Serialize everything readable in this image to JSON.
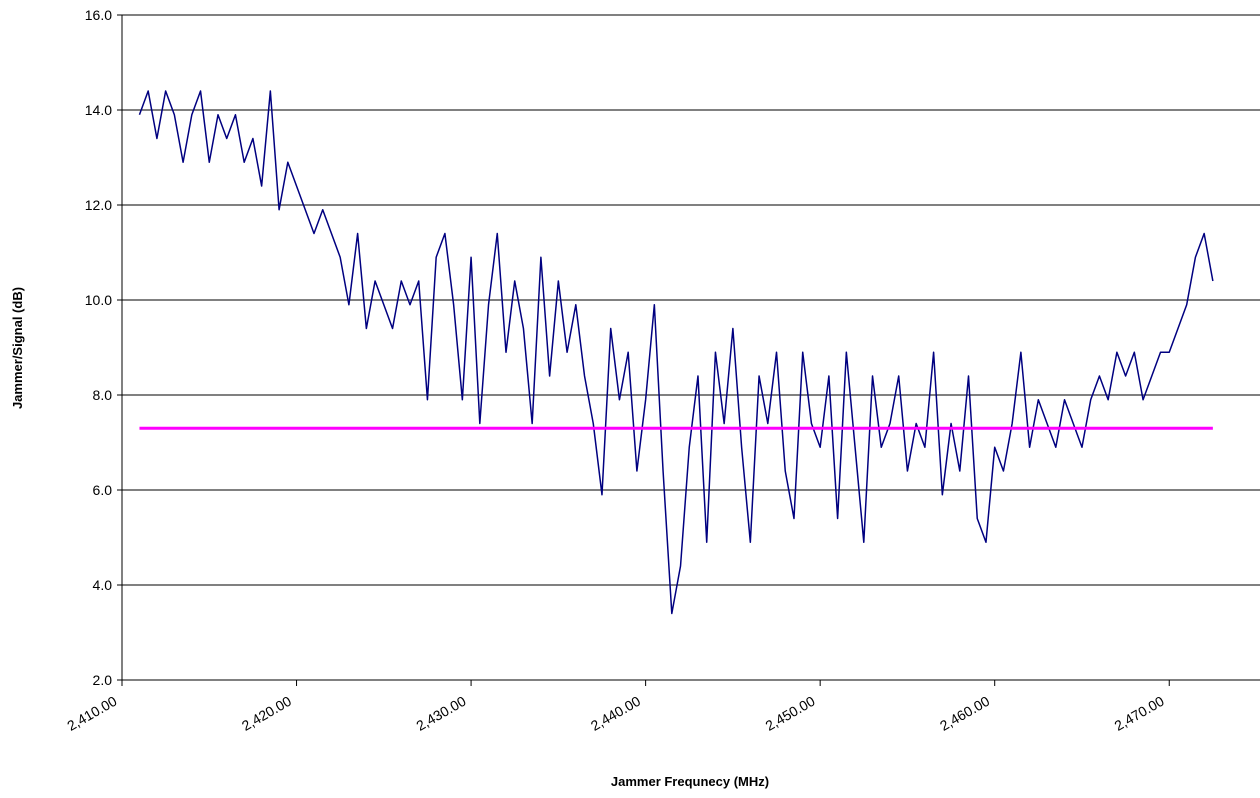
{
  "chart_data": {
    "type": "line",
    "xlabel": "Jammer Frequnecy (MHz)",
    "ylabel": "Jammer/Signal (dB)",
    "xlim": [
      2410,
      2475.2
    ],
    "ylim": [
      2,
      16
    ],
    "xticks": [
      {
        "value": 2410,
        "label": "2,410.00"
      },
      {
        "value": 2420,
        "label": "2,420.00"
      },
      {
        "value": 2430,
        "label": "2,430.00"
      },
      {
        "value": 2440,
        "label": "2,440.00"
      },
      {
        "value": 2450,
        "label": "2,450.00"
      },
      {
        "value": 2460,
        "label": "2,460.00"
      },
      {
        "value": 2470,
        "label": "2,470.00"
      }
    ],
    "yticks": [
      {
        "value": 2,
        "label": "2.0"
      },
      {
        "value": 4,
        "label": "4.0"
      },
      {
        "value": 6,
        "label": "6.0"
      },
      {
        "value": 8,
        "label": "8.0"
      },
      {
        "value": 10,
        "label": "10.0"
      },
      {
        "value": 12,
        "label": "12.0"
      },
      {
        "value": 14,
        "label": "14.0"
      },
      {
        "value": 16,
        "label": "16.0"
      }
    ],
    "grid": true,
    "series": [
      {
        "color": "#000080",
        "x": [
          2411,
          2411.5,
          2412,
          2412.5,
          2413,
          2413.5,
          2414,
          2414.5,
          2415,
          2415.5,
          2416,
          2416.5,
          2417,
          2417.5,
          2418,
          2418.5,
          2419,
          2419.5,
          2420,
          2420.5,
          2421,
          2421.5,
          2422,
          2422.5,
          2423,
          2423.5,
          2424,
          2424.5,
          2425,
          2425.5,
          2426,
          2426.5,
          2427,
          2427.5,
          2428,
          2428.5,
          2429,
          2429.5,
          2430,
          2430.5,
          2431,
          2431.5,
          2432,
          2432.5,
          2433,
          2433.5,
          2434,
          2434.5,
          2435,
          2435.5,
          2436,
          2436.5,
          2437,
          2437.5,
          2438,
          2438.5,
          2439,
          2439.5,
          2440,
          2440.5,
          2441,
          2441.5,
          2442,
          2442.5,
          2443,
          2443.5,
          2444,
          2444.5,
          2445,
          2445.5,
          2446,
          2446.5,
          2447,
          2447.5,
          2448,
          2448.5,
          2449,
          2449.5,
          2450,
          2450.5,
          2451,
          2451.5,
          2452,
          2452.5,
          2453,
          2453.5,
          2454,
          2454.5,
          2455,
          2455.5,
          2456,
          2456.5,
          2457,
          2457.5,
          2458,
          2458.5,
          2459,
          2459.5,
          2460,
          2460.5,
          2461,
          2461.5,
          2462,
          2462.5,
          2463,
          2463.5,
          2464,
          2464.5,
          2465,
          2465.5,
          2466,
          2466.5,
          2467,
          2467.5,
          2468,
          2468.5,
          2469,
          2469.5,
          2470,
          2470.5,
          2471,
          2471.5,
          2472,
          2472.5
        ],
        "values": [
          13.9,
          14.4,
          13.4,
          14.4,
          13.9,
          12.9,
          13.9,
          14.4,
          12.9,
          13.9,
          13.4,
          13.9,
          12.9,
          13.4,
          12.4,
          14.4,
          11.9,
          12.9,
          12.4,
          11.9,
          11.4,
          11.9,
          11.4,
          10.9,
          9.9,
          11.4,
          9.4,
          10.4,
          9.9,
          9.4,
          10.4,
          9.9,
          10.4,
          7.9,
          10.9,
          11.4,
          9.9,
          7.9,
          10.9,
          7.4,
          9.9,
          11.4,
          8.9,
          10.4,
          9.4,
          7.4,
          10.9,
          8.4,
          10.4,
          8.9,
          9.9,
          8.4,
          7.4,
          5.9,
          9.4,
          7.9,
          8.9,
          6.4,
          7.9,
          9.9,
          6.4,
          3.4,
          4.4,
          6.9,
          8.4,
          4.9,
          8.9,
          7.4,
          9.4,
          6.9,
          4.9,
          8.4,
          7.4,
          8.9,
          6.4,
          5.4,
          8.9,
          7.4,
          6.9,
          8.4,
          5.4,
          8.9,
          6.9,
          4.9,
          8.4,
          6.9,
          7.4,
          8.4,
          6.4,
          7.4,
          6.9,
          8.9,
          5.9,
          7.4,
          6.4,
          8.4,
          5.4,
          4.9,
          6.9,
          6.4,
          7.4,
          8.9,
          6.9,
          7.9,
          7.4,
          6.9,
          7.9,
          7.4,
          6.9,
          7.9,
          8.4,
          7.9,
          8.9,
          8.4,
          8.9,
          7.9,
          8.4,
          8.9,
          8.9,
          9.4,
          9.9,
          10.9,
          11.4,
          10.4
        ]
      },
      {
        "color": "#ff00ff",
        "x": [
          2411,
          2472.5
        ],
        "values": [
          7.3,
          7.3
        ]
      }
    ]
  }
}
